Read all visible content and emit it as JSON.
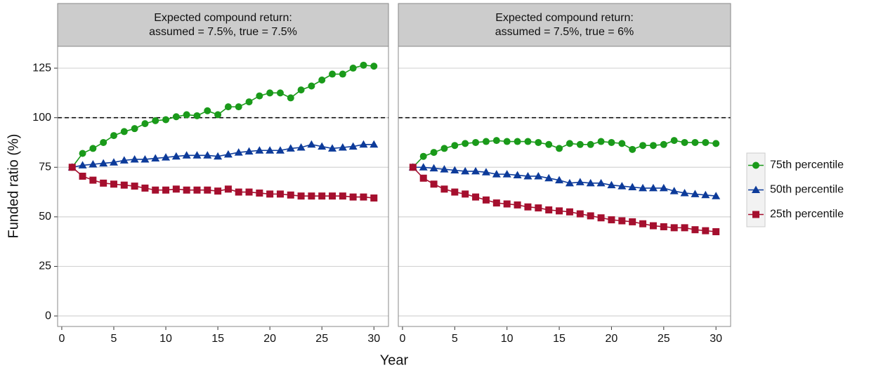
{
  "ylabel": "Funded ratio (%)",
  "xlabel": "Year",
  "legend_position": "right",
  "chart_data": [
    {
      "type": "line",
      "title": "Expected compound return:",
      "subtitle": "assumed = 7.5%, true = 7.5%",
      "x": [
        1,
        2,
        3,
        4,
        5,
        6,
        7,
        8,
        9,
        10,
        11,
        12,
        13,
        14,
        15,
        16,
        17,
        18,
        19,
        20,
        21,
        22,
        23,
        24,
        25,
        26,
        27,
        28,
        29,
        30
      ],
      "xlim": [
        -0.4,
        31.4
      ],
      "ylim": [
        -5.3,
        136
      ],
      "xticks": [
        0,
        5,
        10,
        15,
        20,
        25,
        30
      ],
      "yticks": [
        0,
        25,
        50,
        75,
        100,
        125
      ],
      "grid": true,
      "hline": 100,
      "series": [
        {
          "name": "75th percentile",
          "color": "#1a9a1a",
          "marker": "circle",
          "values": [
            75,
            82,
            84.5,
            87.5,
            91,
            93,
            94.5,
            97,
            98.5,
            99,
            100.5,
            101.5,
            101,
            103.5,
            101.5,
            105.5,
            105.5,
            108,
            111,
            112.5,
            112.5,
            110,
            114,
            116,
            119,
            122,
            122,
            125,
            126.5,
            126
          ]
        },
        {
          "name": "50th percentile",
          "color": "#0d3b9a",
          "marker": "triangle",
          "values": [
            75,
            76,
            76.5,
            77,
            77.5,
            78.5,
            79,
            79,
            79.5,
            80,
            80.5,
            81,
            81,
            81,
            80.5,
            81.5,
            82.5,
            83,
            83.5,
            83.5,
            83.5,
            84.5,
            85,
            86.5,
            85.5,
            84.5,
            85,
            85.5,
            86.5,
            86.5
          ]
        },
        {
          "name": "25th percentile",
          "color": "#a50f2e",
          "marker": "square",
          "values": [
            75,
            70.5,
            68.5,
            67,
            66.5,
            66,
            65.5,
            64.5,
            63.5,
            63.5,
            64,
            63.5,
            63.5,
            63.5,
            63,
            64,
            62.5,
            62.5,
            62,
            61.5,
            61.5,
            61,
            60.5,
            60.5,
            60.5,
            60.5,
            60.5,
            60,
            60,
            59.5
          ]
        }
      ]
    },
    {
      "type": "line",
      "title": "Expected compound return:",
      "subtitle": "assumed = 7.5%, true = 6%",
      "x": [
        1,
        2,
        3,
        4,
        5,
        6,
        7,
        8,
        9,
        10,
        11,
        12,
        13,
        14,
        15,
        16,
        17,
        18,
        19,
        20,
        21,
        22,
        23,
        24,
        25,
        26,
        27,
        28,
        29,
        30
      ],
      "xlim": [
        -0.4,
        31.4
      ],
      "ylim": [
        -5.3,
        136
      ],
      "xticks": [
        0,
        5,
        10,
        15,
        20,
        25,
        30
      ],
      "yticks": [
        0,
        25,
        50,
        75,
        100,
        125
      ],
      "grid": true,
      "hline": 100,
      "series": [
        {
          "name": "75th percentile",
          "color": "#1a9a1a",
          "marker": "circle",
          "values": [
            75,
            80.5,
            82.5,
            84.5,
            86,
            87,
            87.5,
            88,
            88.5,
            88,
            88,
            88,
            87.5,
            86.5,
            84.5,
            87,
            86.5,
            86.5,
            88,
            87.5,
            87,
            84,
            86,
            86,
            86.5,
            88.5,
            87.5,
            87.5,
            87.5,
            87
          ]
        },
        {
          "name": "50th percentile",
          "color": "#0d3b9a",
          "marker": "triangle",
          "values": [
            75,
            75,
            74.5,
            74,
            73.5,
            73,
            73,
            72.5,
            71.5,
            71.5,
            71,
            70.5,
            70.5,
            69.5,
            68.5,
            67,
            67.5,
            67,
            67,
            66,
            65.5,
            65,
            64.5,
            64.5,
            64.5,
            63,
            62,
            61.5,
            61,
            60.5
          ]
        },
        {
          "name": "25th percentile",
          "color": "#a50f2e",
          "marker": "square",
          "values": [
            75,
            69.5,
            66.5,
            64,
            62.5,
            61.5,
            60,
            58.5,
            57,
            56.5,
            56,
            55,
            54.5,
            53.5,
            53,
            52.5,
            51.5,
            50.5,
            49.5,
            48.5,
            48,
            47.5,
            46.5,
            45.5,
            45,
            44.5,
            44.5,
            43.5,
            43,
            42.5
          ]
        }
      ]
    }
  ]
}
